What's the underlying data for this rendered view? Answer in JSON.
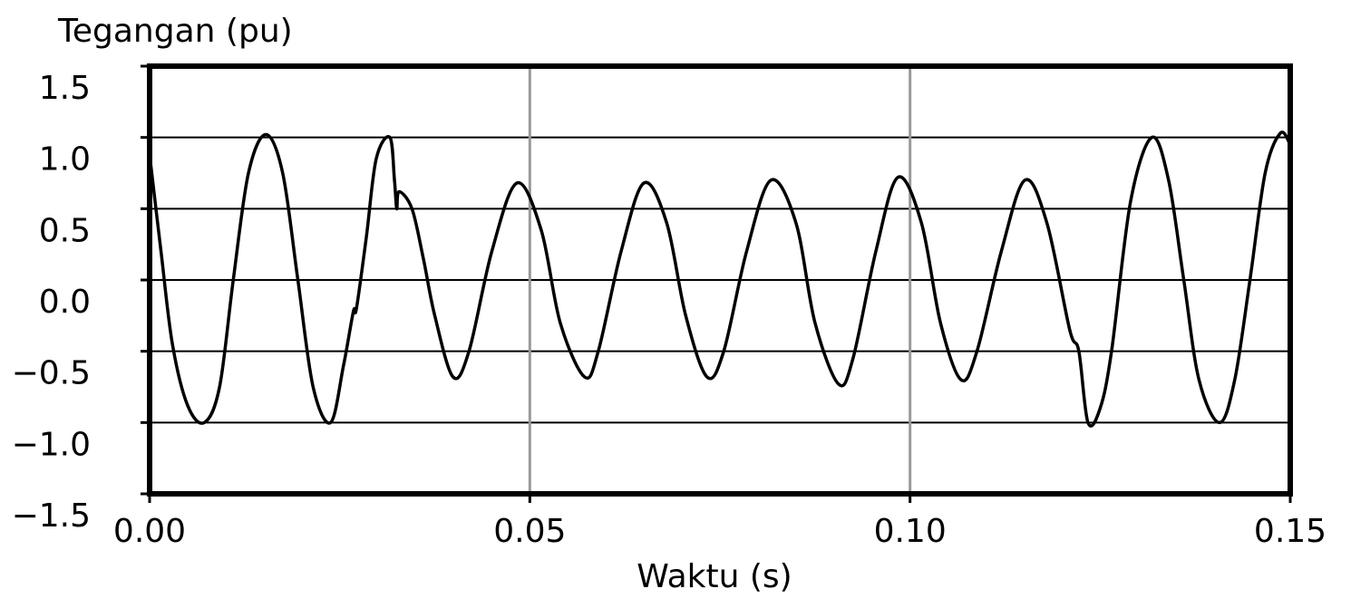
{
  "chart_data": {
    "type": "line",
    "y_label": "Tegangan (pu)",
    "x_label": "Waktu (s)",
    "x": [
      0,
      0.0015,
      0.003,
      0.005,
      0.0072,
      0.0092,
      0.011,
      0.013,
      0.0153,
      0.0175,
      0.0195,
      0.0215,
      0.0238,
      0.0255,
      0.0268,
      0.0272,
      0.0285,
      0.0298,
      0.0316,
      0.0322,
      0.0325,
      0.0328,
      0.0345,
      0.036,
      0.0375,
      0.0399,
      0.042,
      0.045,
      0.0483,
      0.0515,
      0.054,
      0.0572,
      0.059,
      0.062,
      0.065,
      0.068,
      0.0705,
      0.0733,
      0.0755,
      0.0785,
      0.0817,
      0.085,
      0.0875,
      0.0906,
      0.0925,
      0.0955,
      0.0984,
      0.1015,
      0.104,
      0.1067,
      0.1088,
      0.112,
      0.1151,
      0.118,
      0.121,
      0.1222,
      0.1234,
      0.125,
      0.1265,
      0.129,
      0.1318,
      0.134,
      0.136,
      0.138,
      0.1407,
      0.1427,
      0.1447,
      0.1467,
      0.1487,
      0.15
    ],
    "series": [
      {
        "name": "Tegangan",
        "color": "#000000",
        "values": [
          0.88,
          0.2,
          -0.45,
          -0.88,
          -1.0,
          -0.75,
          0.0,
          0.75,
          1.02,
          0.75,
          0.0,
          -0.75,
          -1.0,
          -0.6,
          -0.22,
          -0.2,
          0.3,
          0.85,
          1.0,
          0.7,
          0.5,
          0.62,
          0.5,
          0.15,
          -0.25,
          -0.68,
          -0.5,
          0.2,
          0.68,
          0.35,
          -0.3,
          -0.68,
          -0.5,
          0.2,
          0.68,
          0.4,
          -0.25,
          -0.68,
          -0.5,
          0.2,
          0.7,
          0.4,
          -0.3,
          -0.73,
          -0.55,
          0.2,
          0.72,
          0.4,
          -0.3,
          -0.7,
          -0.5,
          0.2,
          0.7,
          0.4,
          -0.35,
          -0.5,
          -1.0,
          -0.9,
          -0.5,
          0.55,
          1.0,
          0.7,
          0.0,
          -0.7,
          -1.0,
          -0.7,
          0.0,
          0.75,
          1.03,
          0.95
        ]
      }
    ],
    "xlim": [
      0,
      0.15
    ],
    "xticks": [
      {
        "value": 0,
        "label": "0.00"
      },
      {
        "value": 0.05,
        "label": "0.05"
      },
      {
        "value": 0.1,
        "label": "0.10"
      },
      {
        "value": 0.15,
        "label": "0.15"
      }
    ],
    "ylim": [
      -1.5,
      1.5
    ],
    "yticks": [
      {
        "value": -1.5,
        "label": "−1.5"
      },
      {
        "value": -1,
        "label": "−1.0"
      },
      {
        "value": -0.5,
        "label": "−0.5"
      },
      {
        "value": 0,
        "label": "0.0"
      },
      {
        "value": 0.5,
        "label": "0.5"
      },
      {
        "value": 1,
        "label": "1.0"
      },
      {
        "value": 1.5,
        "label": "1.5"
      }
    ],
    "grid": true
  }
}
